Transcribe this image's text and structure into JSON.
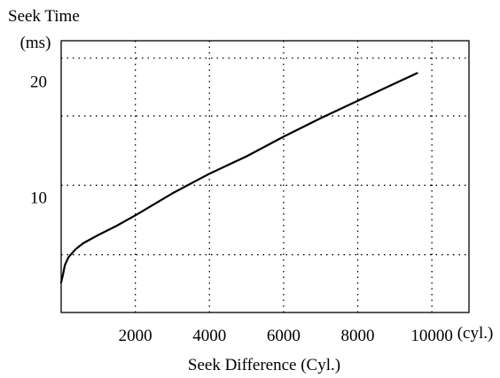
{
  "chart_data": {
    "type": "line",
    "title": "",
    "ylabel": "Seek Time",
    "yunit": "(ms)",
    "xlabel": "Seek Difference (Cyl.)",
    "xunit": "(cyl.)",
    "xlim": [
      0,
      11000
    ],
    "ylim": [
      0,
      23.5
    ],
    "x_ticks": [
      2000,
      4000,
      6000,
      8000,
      10000
    ],
    "x_tick_labels": [
      "2000",
      "4000",
      "6000",
      "8000",
      "10000"
    ],
    "y_ticks": [
      10,
      20
    ],
    "y_tick_labels": [
      "10",
      "20"
    ],
    "y_grid": [
      5,
      11,
      17,
      22
    ],
    "grid": true,
    "grid_style": "dotted",
    "series": [
      {
        "x": [
          0,
          50,
          100,
          200,
          400,
          600,
          1000,
          1500,
          2000,
          3000,
          4000,
          5000,
          6000,
          7000,
          8000,
          9000,
          9600
        ],
        "y": [
          2.6,
          3.3,
          4.1,
          4.8,
          5.5,
          6.0,
          6.7,
          7.5,
          8.4,
          10.3,
          12.0,
          13.5,
          15.2,
          16.8,
          18.3,
          19.8,
          20.7
        ]
      }
    ]
  }
}
